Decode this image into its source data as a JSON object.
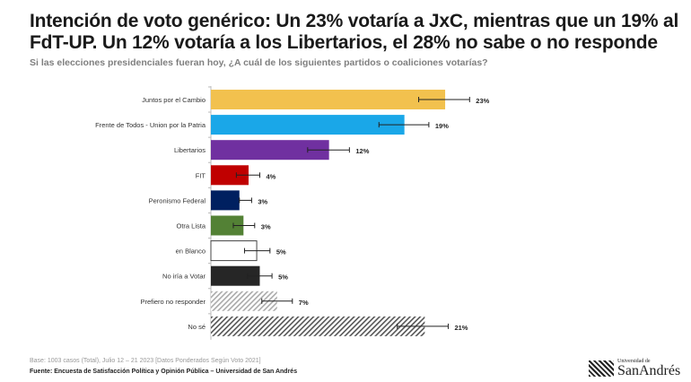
{
  "header": {
    "title": "Intención de voto genérico: Un 23% votaría a JxC, mientras que un 19% al FdT-UP. Un 12% votaría a los Libertarios, el 28% no sabe o no responde",
    "subtitle": "Si las elecciones presidenciales fueran hoy, ¿A cuál de los siguientes partidos o coaliciones votarías?"
  },
  "chart_data": {
    "type": "bar",
    "orientation": "horizontal",
    "title": "Intención de voto genérico",
    "xlabel": "",
    "ylabel": "",
    "xlim": [
      0,
      25
    ],
    "grid": false,
    "categories": [
      "Juntos por el Cambio",
      "Frente de Todos - Union por la Patria",
      "Libertarios",
      "FIT",
      "Peronismo Federal",
      "Otra Lista",
      "en Blanco",
      "No iría a Votar",
      "Prefiero no responder",
      "No sé"
    ],
    "values": [
      23,
      19,
      11.6,
      3.7,
      2.8,
      3.2,
      4.5,
      4.8,
      6.5,
      21
    ],
    "labels": [
      "23%",
      "19%",
      "12%",
      "4%",
      "3%",
      "3%",
      "5%",
      "5%",
      "7%",
      "21%"
    ],
    "error_low": [
      20.4,
      16.5,
      9.5,
      2.5,
      2.8,
      2.2,
      3.3,
      3.6,
      5,
      18.3
    ],
    "error_high": [
      25.4,
      21.4,
      13.6,
      4.8,
      4.0,
      4.3,
      5.8,
      6.0,
      8.0,
      23.3
    ],
    "colors": [
      "#f2c14e",
      "#1aa7e8",
      "#7030a0",
      "#c00000",
      "#002060",
      "#538135",
      "#ffffff",
      "#262626",
      "hatch-light",
      "hatch-dark"
    ]
  },
  "footer": {
    "base": "Base: 1003 casos (Total), Julio 12 – 21 2023 [Datos Ponderados Según Voto 2021]",
    "source": "Fuente: Encuesta de Satisfacción Política y Opinión Pública – Universidad de San Andrés",
    "logo_small": "Universidad de",
    "logo_big": "SanAndrés"
  }
}
